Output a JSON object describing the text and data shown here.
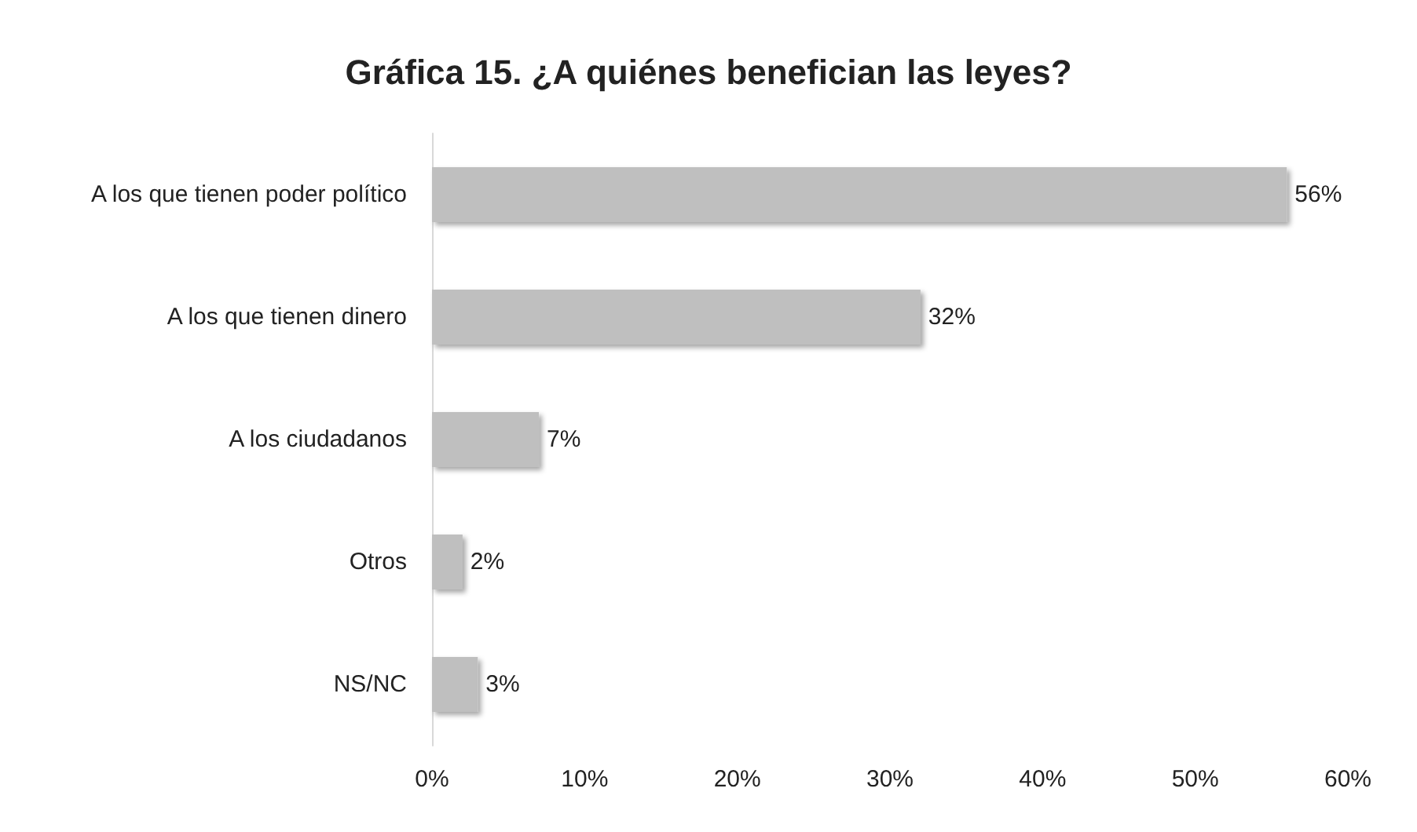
{
  "chart_data": {
    "type": "bar",
    "orientation": "horizontal",
    "title": "Gráfica 15. ¿A quiénes benefician las leyes?",
    "categories": [
      "A los que tienen poder político",
      "A los que tienen dinero",
      "A los ciudadanos",
      "Otros",
      "NS/NC"
    ],
    "values": [
      56,
      32,
      7,
      2,
      3
    ],
    "value_labels": [
      "56%",
      "32%",
      "7%",
      "2%",
      "3%"
    ],
    "color": "#bfbfbf",
    "xlim": [
      0,
      60
    ],
    "xticks": [
      {
        "value": 0,
        "label": "0%"
      },
      {
        "value": 10,
        "label": "10%"
      },
      {
        "value": 20,
        "label": "20%"
      },
      {
        "value": 30,
        "label": "30%"
      },
      {
        "value": 40,
        "label": "40%"
      },
      {
        "value": 50,
        "label": "50%"
      },
      {
        "value": 60,
        "label": "60%"
      }
    ],
    "grid": false
  }
}
